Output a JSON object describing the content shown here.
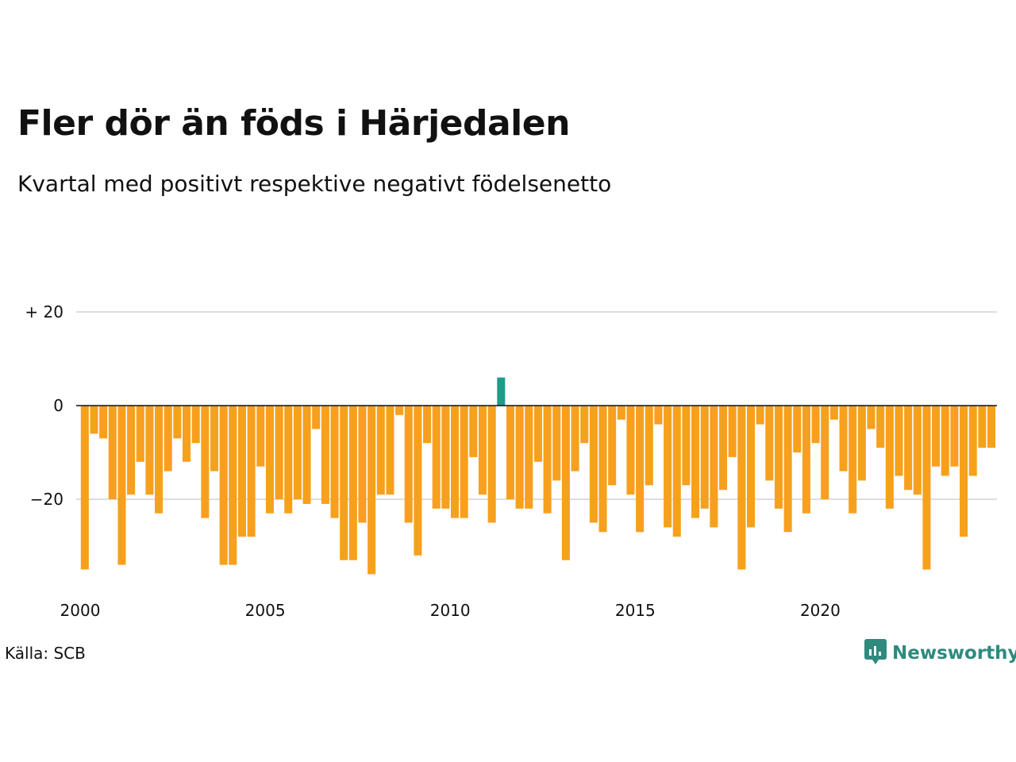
{
  "title": "Fler dör än föds i Härjedalen",
  "subtitle": "Kvartal med positivt respektive negativt födelsenetto",
  "source": "Källa: SCB",
  "brand": {
    "name": "Newsworthy",
    "icon": "newsworthy-logo-icon"
  },
  "colors": {
    "negative": "#f7a01d",
    "positive": "#1f9b8a",
    "grid": "#dddddd",
    "baseline": "#111111",
    "brand": "#2e8a7e"
  },
  "chart_data": {
    "type": "bar",
    "ylim": [
      -36,
      20
    ],
    "y_ticks": [
      {
        "value": 20,
        "label": "+ 20"
      },
      {
        "value": 0,
        "label": "0"
      },
      {
        "value": -20,
        "label": "−20"
      }
    ],
    "x_ticks": [
      {
        "value": 2000,
        "label": "2000"
      },
      {
        "value": 2005,
        "label": "2005"
      },
      {
        "value": 2010,
        "label": "2010"
      },
      {
        "value": 2015,
        "label": "2015"
      },
      {
        "value": 2020,
        "label": "2020"
      }
    ],
    "x_start": 2000,
    "values": [
      -35,
      -6,
      -7,
      -20,
      -34,
      -19,
      -12,
      -19,
      -23,
      -14,
      -7,
      -12,
      -8,
      -24,
      -14,
      -34,
      -34,
      -28,
      -28,
      -13,
      -23,
      -20,
      -23,
      -20,
      -21,
      -5,
      -21,
      -24,
      -33,
      -33,
      -25,
      -36,
      -19,
      -19,
      -2,
      -25,
      -32,
      -8,
      -22,
      -22,
      -24,
      -24,
      -11,
      -19,
      -25,
      6,
      -20,
      -22,
      -22,
      -12,
      -23,
      -16,
      -33,
      -14,
      -8,
      -25,
      -27,
      -17,
      -3,
      -19,
      -27,
      -17,
      -4,
      -26,
      -28,
      -17,
      -24,
      -22,
      -26,
      -18,
      -11,
      -35,
      -26,
      -4,
      -16,
      -22,
      -27,
      -10,
      -23,
      -8,
      -20,
      -3,
      -14,
      -23,
      -16,
      -5,
      -9,
      -22,
      -15,
      -18,
      -19,
      -35,
      -13,
      -15,
      -13,
      -28,
      -15,
      -9,
      -9
    ]
  }
}
